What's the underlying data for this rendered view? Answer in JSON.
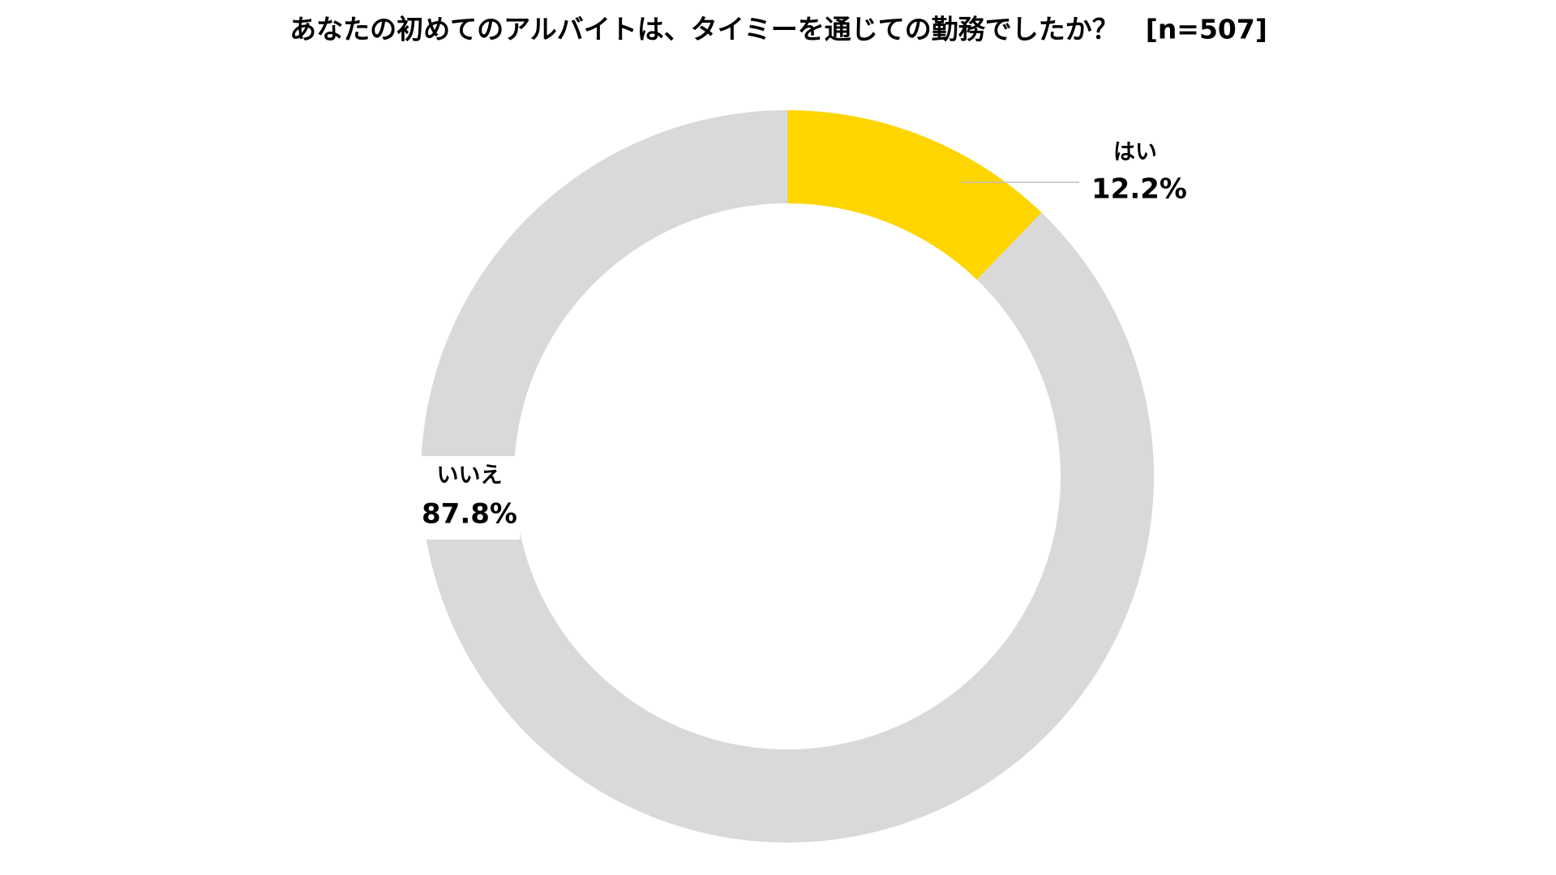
{
  "chart_data": {
    "type": "donut",
    "title": "あなたの初めてのアルバイトは、タイミーを通じての勤務でしたか？　[n=507]",
    "categories": [
      "はい",
      "いいえ"
    ],
    "values": [
      12.2,
      87.8
    ],
    "value_labels": [
      "12.2%",
      "87.8%"
    ],
    "colors": [
      "#ffd500",
      "#d9d9d9"
    ]
  }
}
